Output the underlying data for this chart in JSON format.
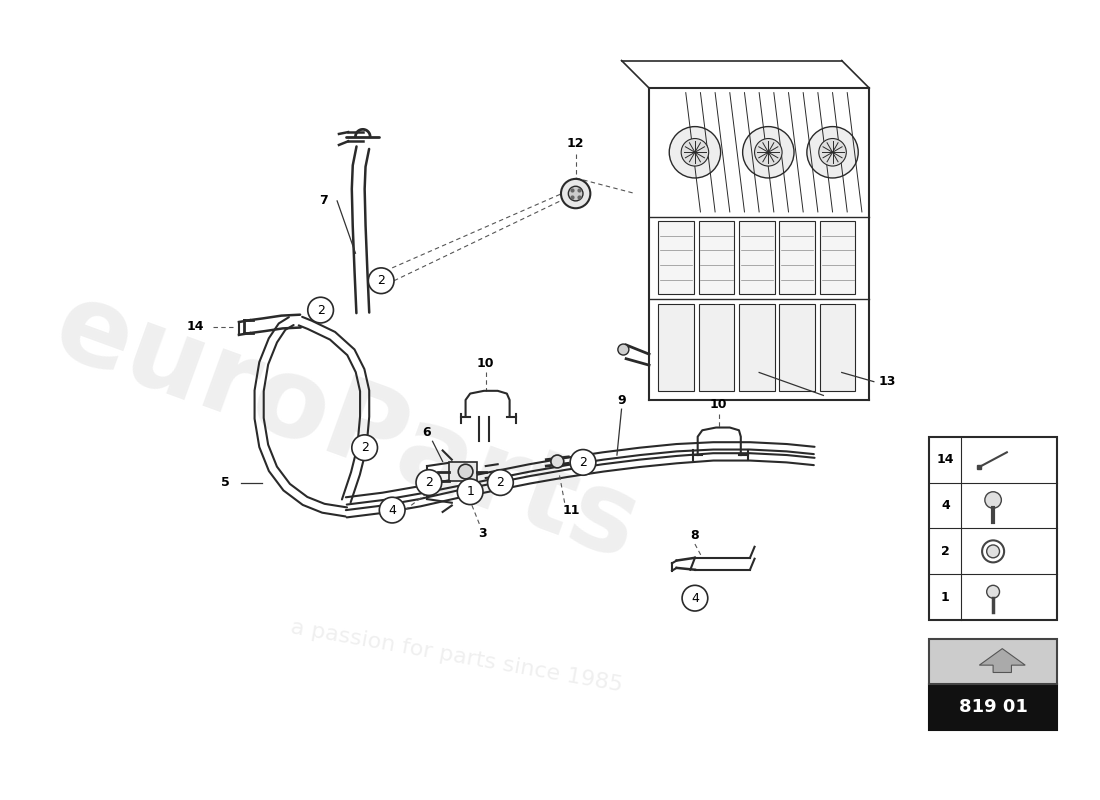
{
  "bg_color": "#ffffff",
  "part_number": "819 01",
  "fig_width": 11.0,
  "fig_height": 8.0,
  "legend_items": [
    {
      "num": "14"
    },
    {
      "num": "4"
    },
    {
      "num": "2"
    },
    {
      "num": "1"
    }
  ],
  "watermark_main": "euroParts",
  "watermark_sub": "a passion for parts since 1985"
}
